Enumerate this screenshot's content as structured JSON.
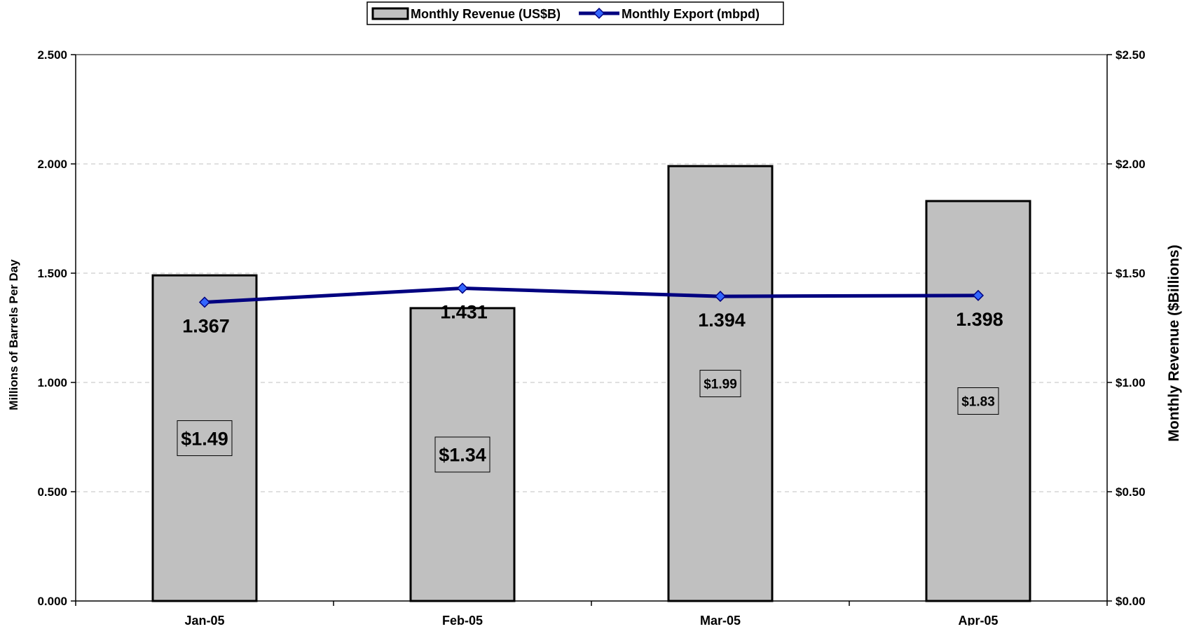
{
  "chart_data": {
    "type": "bar",
    "categories": [
      "Jan-05",
      "Feb-05",
      "Mar-05",
      "Apr-05"
    ],
    "legend": {
      "position": "top-center",
      "entries": [
        "Monthly Revenue (US$B)",
        "Monthly Export (mbpd)"
      ]
    },
    "series": [
      {
        "name": "Monthly Revenue (US$B)",
        "type": "bar",
        "axis": "right",
        "values": [
          1.49,
          1.34,
          1.99,
          1.83
        ],
        "labels": [
          "$1.49",
          "$1.34",
          "$1.99",
          "$1.83"
        ],
        "color": "#c0c0c0",
        "border_color": "#000000"
      },
      {
        "name": "Monthly Export (mbpd)",
        "type": "line",
        "axis": "left",
        "values": [
          1.367,
          1.431,
          1.394,
          1.398
        ],
        "labels": [
          "1.367",
          "1.431",
          "1.394",
          "1.398"
        ],
        "color": "#000080",
        "marker_color": "#3366ff"
      }
    ],
    "y_left": {
      "label": "Millions of Barrels Per Day",
      "lim": [
        0,
        2.5
      ],
      "ticks": [
        "0.000",
        "0.500",
        "1.000",
        "1.500",
        "2.000",
        "2.500"
      ]
    },
    "y_right": {
      "label": "Monthly Revenue ($Billions)",
      "lim": [
        0,
        2.5
      ],
      "ticks": [
        "$0.00",
        "$0.50",
        "$1.00",
        "$1.50",
        "$2.00",
        "$2.50"
      ]
    },
    "grid": true,
    "grid_color": "#c0c0c0"
  }
}
